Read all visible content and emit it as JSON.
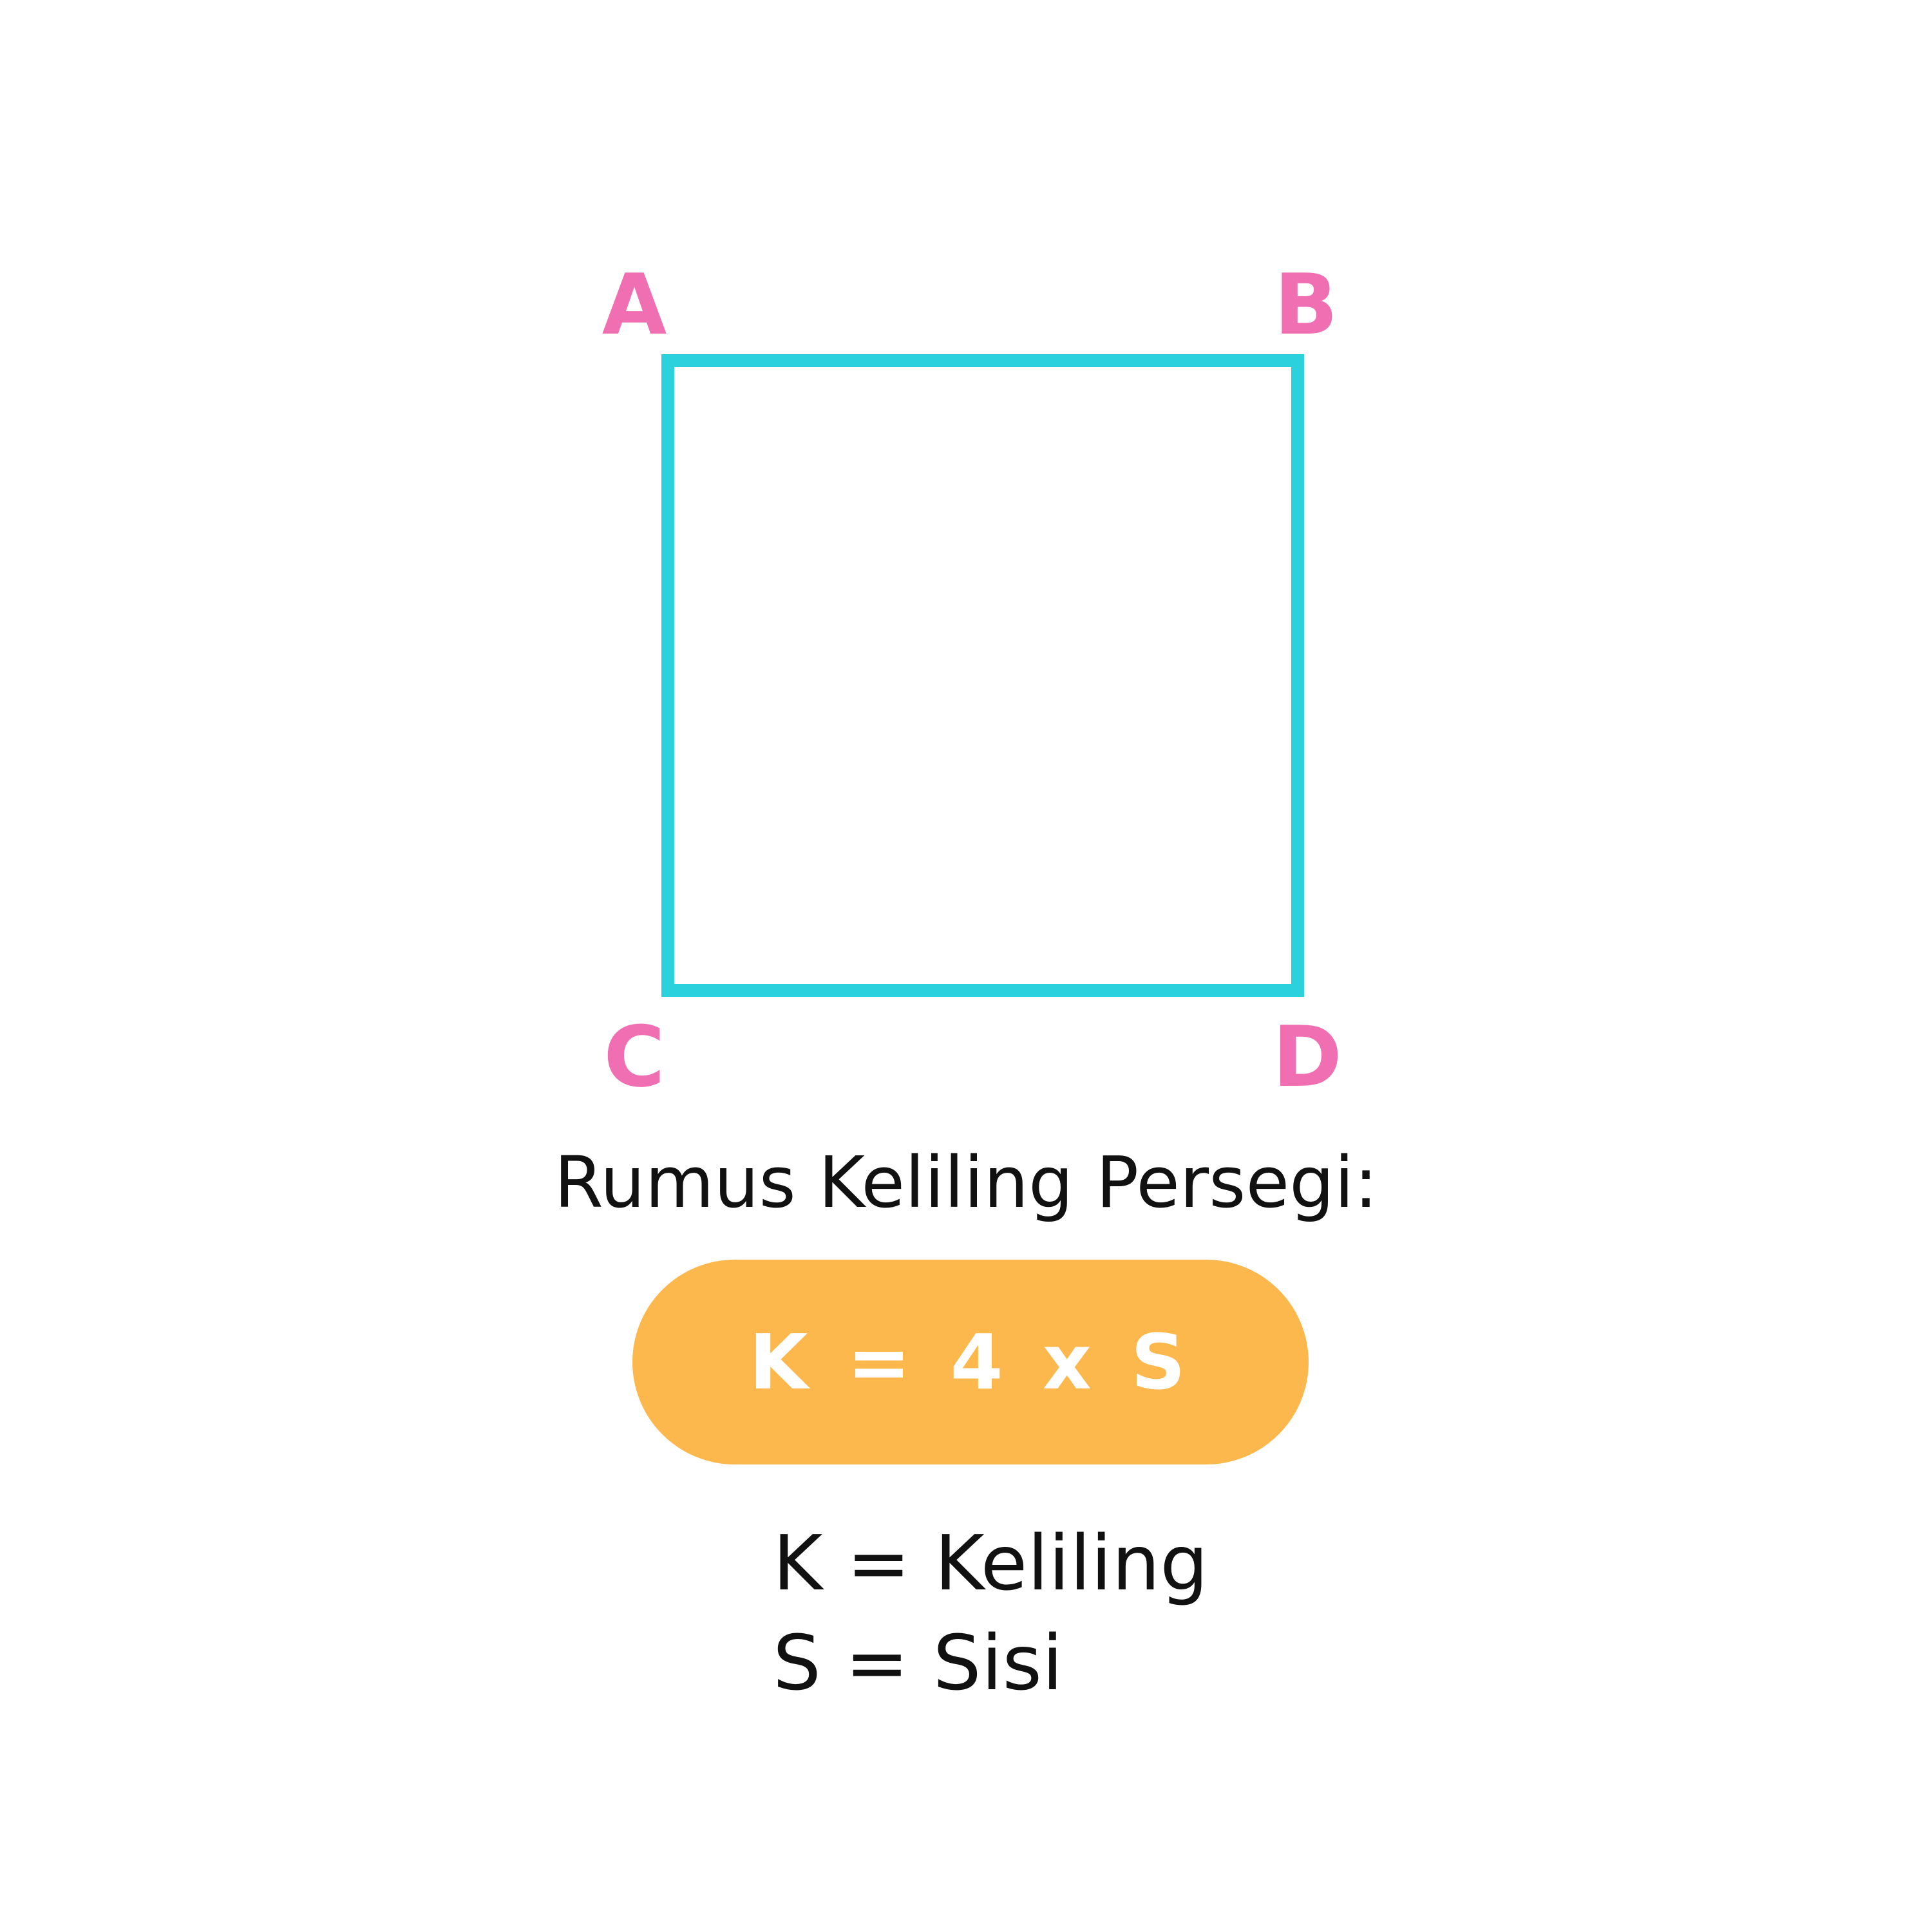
{
  "diagram": {
    "vertices": {
      "a": "A",
      "b": "B",
      "c": "C",
      "d": "D"
    },
    "colors": {
      "square_stroke": "#2bd1dd",
      "vertex_label": "#f06fb3",
      "formula_pill": "#fcb74d"
    }
  },
  "formula": {
    "title": "Rumus Keliling Persegi:",
    "expression": "K = 4 x S"
  },
  "legend": {
    "items": [
      "K = Keliling",
      "S = Sisi"
    ]
  }
}
